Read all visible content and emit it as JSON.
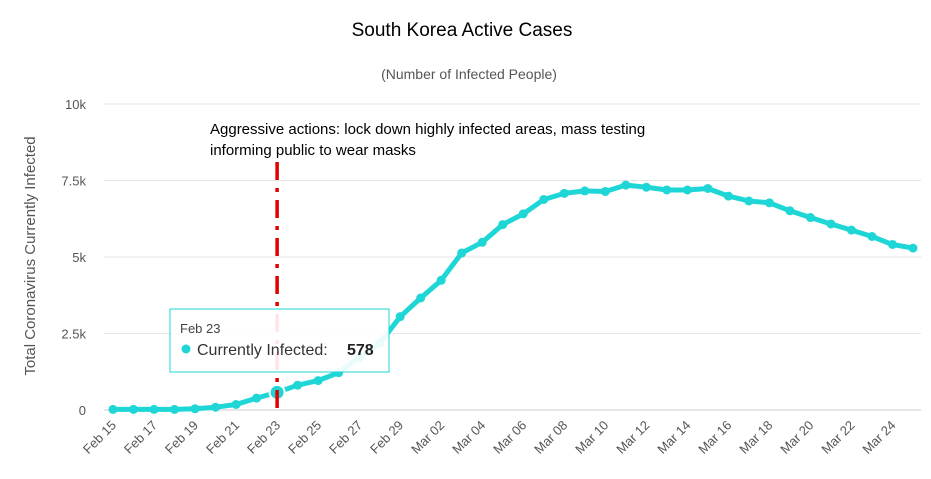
{
  "chart_data": {
    "type": "line",
    "title": "South Korea Active Cases",
    "subtitle": "(Number of Infected People)",
    "ylabel": "Total Coronavirus Currently Infected",
    "xlabel": "",
    "ylim": [
      0,
      10000
    ],
    "y_ticks": [
      0,
      2500,
      5000,
      7500,
      10000
    ],
    "y_tick_labels": [
      "0",
      "2.5k",
      "5k",
      "7.5k",
      "10k"
    ],
    "x": [
      "Feb 15",
      "Feb 16",
      "Feb 17",
      "Feb 18",
      "Feb 19",
      "Feb 20",
      "Feb 21",
      "Feb 22",
      "Feb 23",
      "Feb 24",
      "Feb 25",
      "Feb 26",
      "Feb 27",
      "Feb 28",
      "Feb 29",
      "Mar 01",
      "Mar 02",
      "Mar 03",
      "Mar 04",
      "Mar 05",
      "Mar 06",
      "Mar 07",
      "Mar 08",
      "Mar 09",
      "Mar 10",
      "Mar 11",
      "Mar 12",
      "Mar 13",
      "Mar 14",
      "Mar 15",
      "Mar 16",
      "Mar 17",
      "Mar 18",
      "Mar 19",
      "Mar 20",
      "Mar 21",
      "Mar 22",
      "Mar 23",
      "Mar 24",
      "Mar 25"
    ],
    "x_tick_labels": [
      "Feb 15",
      "Feb 17",
      "Feb 19",
      "Feb 21",
      "Feb 23",
      "Feb 25",
      "Feb 27",
      "Feb 29",
      "Mar 02",
      "Mar 04",
      "Mar 06",
      "Mar 08",
      "Mar 10",
      "Mar 12",
      "Mar 14",
      "Mar 16",
      "Mar 18",
      "Mar 20",
      "Mar 22",
      "Mar 24"
    ],
    "series": [
      {
        "name": "Currently Infected",
        "color": "#1fd6d6",
        "values": [
          20,
          20,
          20,
          20,
          40,
          90,
          180,
          390,
          578,
          810,
          960,
          1220,
          1710,
          2180,
          3050,
          3660,
          4240,
          5130,
          5480,
          6060,
          6410,
          6880,
          7080,
          7160,
          7140,
          7350,
          7280,
          7190,
          7190,
          7240,
          6990,
          6830,
          6770,
          6510,
          6290,
          6080,
          5880,
          5670,
          5410,
          5290
        ]
      }
    ],
    "annotation": {
      "x": "Feb 23",
      "color": "#e00000",
      "lines": [
        "Aggressive actions: lock down highly infected areas, mass testing",
        "informing public to wear masks"
      ]
    },
    "tooltip": {
      "date": "Feb 23",
      "label": "Currently Infected:",
      "value": "578"
    },
    "grid": true,
    "legend": "none"
  }
}
